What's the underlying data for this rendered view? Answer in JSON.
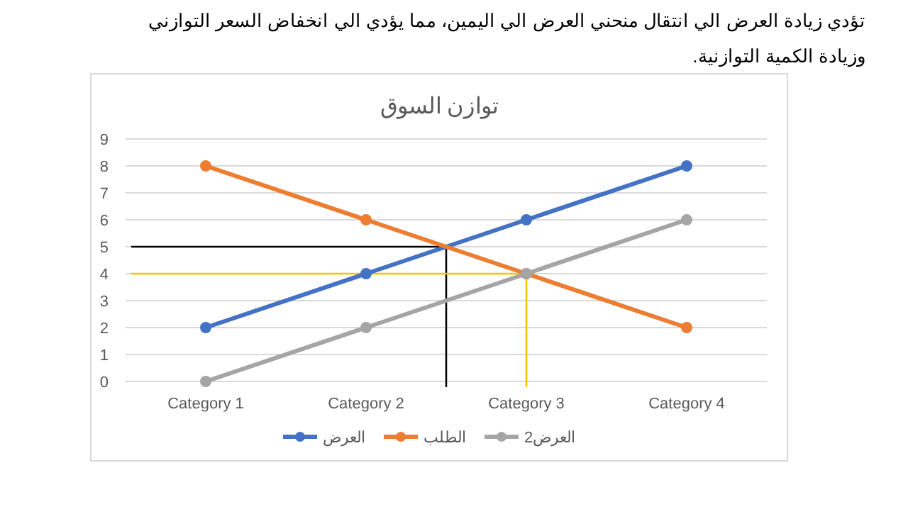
{
  "chart_data": {
    "type": "line",
    "title": "توازن السوق",
    "annotations": [
      "تؤدي زيادة العرض الي انتقال منحني العرض الي اليمين، مما يؤدي الي انخفاض السعر التوازني وزيادة الكمية التوازنية."
    ],
    "categories": [
      "Category 1",
      "Category 2",
      "Category 3",
      "Category 4"
    ],
    "series": [
      {
        "name": "العرض",
        "color": "#4472c4",
        "values": [
          2,
          4,
          6,
          8
        ]
      },
      {
        "name": "الطلب",
        "color": "#ed7d31",
        "values": [
          8,
          6,
          4,
          2
        ]
      },
      {
        "name": "العرض2",
        "color": "#a5a5a5",
        "values": [
          0,
          2,
          4,
          6
        ]
      }
    ],
    "ylim": [
      0,
      9
    ],
    "yticks": [
      0,
      1,
      2,
      3,
      4,
      5,
      6,
      7,
      8,
      9
    ],
    "grid": "y",
    "legend": "bottom",
    "marker": "circle",
    "line_style": "solid",
    "ref_lines": [
      {
        "axis": "y",
        "value": 5,
        "color": "#000000"
      },
      {
        "axis": "y",
        "value": 4,
        "color": "#ffc000"
      }
    ]
  }
}
